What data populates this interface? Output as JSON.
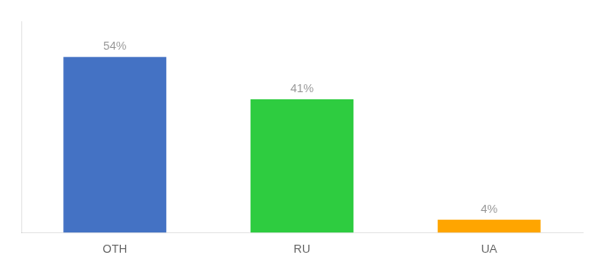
{
  "chart_data": {
    "type": "bar",
    "categories": [
      "OTH",
      "RU",
      "UA"
    ],
    "values": [
      54,
      41,
      4
    ],
    "value_labels": [
      "54%",
      "41%",
      "4%"
    ],
    "colors": [
      "#4472C4",
      "#2ECC40",
      "#FFA500"
    ],
    "ylim": [
      0,
      65
    ],
    "data_labels": true,
    "tick_labels": "x",
    "grid": false
  }
}
